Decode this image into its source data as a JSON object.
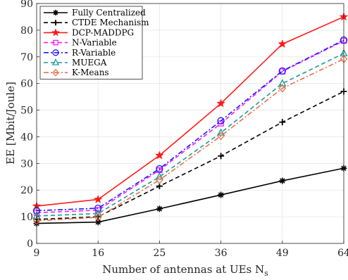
{
  "chart_data": {
    "type": "line",
    "x": [
      9,
      16,
      25,
      36,
      49,
      64
    ],
    "x_tick_labels": [
      "9",
      "16",
      "25",
      "36",
      "49",
      "64"
    ],
    "xlabel": "Number of antennas at UEs N",
    "xlabel_subscript": "s",
    "ylabel": "EE [Mbit/Joule]",
    "ylim": [
      0,
      90
    ],
    "y_ticks": [
      "0",
      "10",
      "20",
      "30",
      "40",
      "50",
      "60",
      "70",
      "80",
      "90"
    ],
    "grid": true,
    "legend_position": "top-left",
    "series": [
      {
        "name": "Fully Centralized",
        "values": [
          7.5,
          8.0,
          13.0,
          18.2,
          23.5,
          28.2
        ],
        "color": "#000000",
        "dash": "solid",
        "marker": "asterisk"
      },
      {
        "name": "CTDE Mechanism",
        "values": [
          9.0,
          10.0,
          21.5,
          32.8,
          45.5,
          57.0
        ],
        "color": "#000000",
        "dash": "dashed",
        "marker": "plus"
      },
      {
        "name": "DCP-MADDPG",
        "values": [
          14.0,
          16.5,
          33.0,
          52.5,
          74.8,
          85.0
        ],
        "color": "#ff1a1a",
        "dash": "solid",
        "marker": "star"
      },
      {
        "name": "N-Variable",
        "values": [
          11.5,
          12.5,
          27.5,
          45.0,
          64.5,
          76.0
        ],
        "color": "#ff1aff",
        "dash": "dashed",
        "marker": "square"
      },
      {
        "name": "R-Variable",
        "values": [
          12.3,
          13.2,
          28.0,
          46.0,
          64.7,
          76.3
        ],
        "color": "#1a1aff",
        "dash": "dashdot",
        "marker": "circle"
      },
      {
        "name": "MUEGA",
        "values": [
          10.3,
          11.2,
          25.0,
          41.5,
          60.0,
          71.3
        ],
        "color": "#1a9a9a",
        "dash": "dashed",
        "marker": "triangle"
      },
      {
        "name": "K-Means",
        "values": [
          8.5,
          9.8,
          23.8,
          40.3,
          58.2,
          69.2
        ],
        "color": "#e8704a",
        "dash": "dashdot",
        "marker": "diamond"
      }
    ]
  }
}
